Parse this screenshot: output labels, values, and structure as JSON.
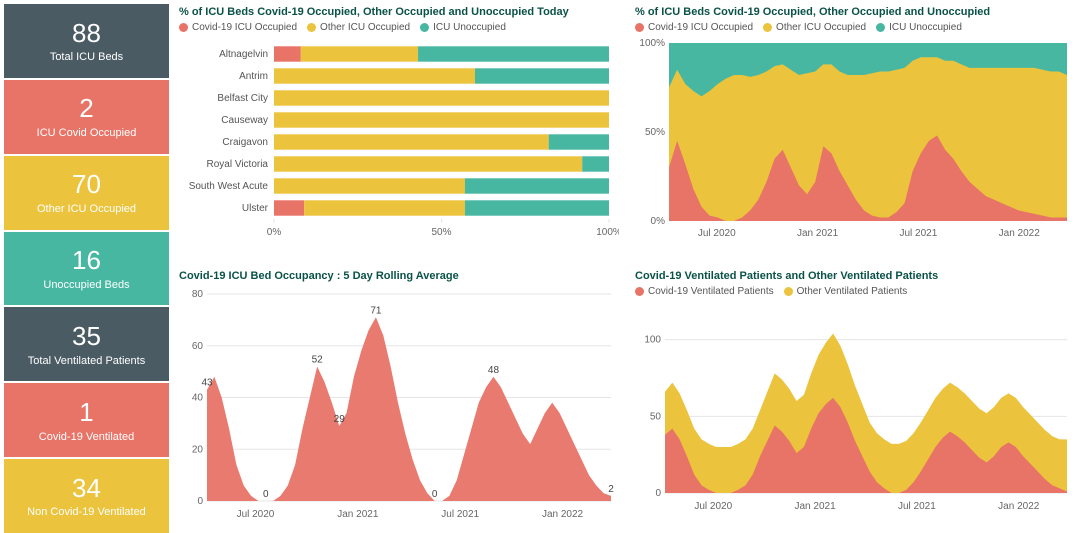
{
  "colors": {
    "slate": "#4a5b63",
    "red": "#e87367",
    "yellow": "#ebc33c",
    "teal": "#48b7a2",
    "title": "#0a5248",
    "grid": "#e5e5e5",
    "axis_text": "#666666"
  },
  "stats": [
    {
      "value": "88",
      "label": "Total ICU Beds",
      "bg": "#4a5b63"
    },
    {
      "value": "2",
      "label": "ICU Covid Occupied",
      "bg": "#e87367"
    },
    {
      "value": "70",
      "label": "Other ICU Occupied",
      "bg": "#ebc33c"
    },
    {
      "value": "16",
      "label": "Unoccupied Beds",
      "bg": "#48b7a2"
    },
    {
      "value": "35",
      "label": "Total Ventilated Patients",
      "bg": "#4a5b63"
    },
    {
      "value": "1",
      "label": "Covid-19 Ventilated",
      "bg": "#e87367"
    },
    {
      "value": "34",
      "label": "Non Covid-19 Ventilated",
      "bg": "#ebc33c"
    }
  ],
  "hbar": {
    "title": "% of ICU Beds Covid-19 Occupied, Other Occupied and Unoccupied Today",
    "legend": [
      {
        "label": "Covid-19 ICU Occupied",
        "color": "#e87367"
      },
      {
        "label": "Other ICU Occupied",
        "color": "#ebc33c"
      },
      {
        "label": "ICU Unoccupied",
        "color": "#48b7a2"
      }
    ],
    "xticks": [
      "0%",
      "50%",
      "100%"
    ],
    "rows": [
      {
        "name": "Altnagelvin",
        "segs": [
          8,
          35,
          57
        ]
      },
      {
        "name": "Antrim",
        "segs": [
          0,
          60,
          40
        ]
      },
      {
        "name": "Belfast City",
        "segs": [
          0,
          100,
          0
        ]
      },
      {
        "name": "Causeway",
        "segs": [
          0,
          100,
          0
        ]
      },
      {
        "name": "Craigavon",
        "segs": [
          0,
          82,
          18
        ]
      },
      {
        "name": "Royal Victoria",
        "segs": [
          0,
          92,
          8
        ]
      },
      {
        "name": "South West Acute",
        "segs": [
          0,
          57,
          43
        ]
      },
      {
        "name": "Ulster",
        "segs": [
          9,
          48,
          43
        ]
      }
    ]
  },
  "stacked_pct": {
    "title": "% of ICU Beds Covid-19 Occupied, Other Occupied and Unoccupied",
    "legend": [
      {
        "label": "Covid-19 ICU Occupied",
        "color": "#e87367"
      },
      {
        "label": "Other ICU Occupied",
        "color": "#ebc33c"
      },
      {
        "label": "ICU Unoccupied",
        "color": "#48b7a2"
      }
    ],
    "yticks": [
      "0%",
      "50%",
      "100%"
    ],
    "xticks": [
      "Jul 2020",
      "Jan 2021",
      "Jul 2021",
      "Jan 2022"
    ],
    "series_covid": [
      30,
      45,
      32,
      18,
      8,
      3,
      2,
      0,
      0,
      2,
      6,
      12,
      22,
      35,
      40,
      30,
      20,
      15,
      22,
      42,
      38,
      28,
      20,
      12,
      6,
      3,
      2,
      2,
      5,
      10,
      28,
      38,
      45,
      48,
      40,
      35,
      28,
      22,
      18,
      14,
      12,
      10,
      8,
      6,
      5,
      4,
      3,
      2,
      2,
      2
    ],
    "series_other": [
      45,
      40,
      45,
      55,
      62,
      70,
      75,
      80,
      82,
      80,
      75,
      70,
      62,
      52,
      48,
      55,
      62,
      68,
      62,
      46,
      50,
      56,
      62,
      70,
      76,
      80,
      82,
      82,
      80,
      76,
      62,
      54,
      47,
      44,
      50,
      55,
      60,
      64,
      68,
      72,
      74,
      76,
      78,
      80,
      81,
      82,
      82,
      82,
      82,
      80
    ]
  },
  "rolling": {
    "title": "Covid-19 ICU Bed Occupancy : 5 Day Rolling Average",
    "ymax": 80,
    "yticks": [
      0,
      20,
      40,
      60,
      80
    ],
    "xticks": [
      "Jul 2020",
      "Jan 2021",
      "Jul 2021",
      "Jan 2022"
    ],
    "color": "#e87367",
    "values": [
      43,
      48,
      40,
      28,
      14,
      6,
      2,
      0,
      0,
      0,
      2,
      6,
      14,
      28,
      40,
      52,
      46,
      38,
      29,
      34,
      48,
      58,
      66,
      71,
      64,
      52,
      38,
      26,
      16,
      8,
      3,
      0,
      0,
      2,
      8,
      18,
      28,
      38,
      44,
      48,
      44,
      38,
      32,
      26,
      22,
      28,
      34,
      38,
      34,
      28,
      22,
      16,
      10,
      6,
      3,
      2
    ],
    "labels": [
      {
        "i": 0,
        "text": "43"
      },
      {
        "i": 8,
        "text": "0"
      },
      {
        "i": 15,
        "text": "52"
      },
      {
        "i": 18,
        "text": "29"
      },
      {
        "i": 23,
        "text": "71"
      },
      {
        "i": 31,
        "text": "0"
      },
      {
        "i": 39,
        "text": "48"
      },
      {
        "i": 55,
        "text": "2"
      }
    ]
  },
  "ventilated": {
    "title": "Covid-19 Ventilated Patients and Other Ventilated Patients",
    "legend": [
      {
        "label": "Covid-19 Ventilated Patients",
        "color": "#e87367"
      },
      {
        "label": "Other Ventilated Patients",
        "color": "#ebc33c"
      }
    ],
    "ymax": 120,
    "yticks": [
      0,
      50,
      100
    ],
    "xticks": [
      "Jul 2020",
      "Jan 2021",
      "Jul 2021",
      "Jan 2022"
    ],
    "covid": [
      38,
      42,
      35,
      24,
      12,
      5,
      2,
      0,
      0,
      0,
      2,
      5,
      12,
      24,
      34,
      44,
      40,
      34,
      26,
      30,
      42,
      52,
      58,
      62,
      56,
      46,
      34,
      24,
      14,
      7,
      3,
      0,
      0,
      2,
      7,
      14,
      22,
      30,
      36,
      40,
      37,
      33,
      28,
      23,
      20,
      24,
      30,
      33,
      30,
      24,
      19,
      14,
      9,
      5,
      3,
      1
    ],
    "other": [
      28,
      30,
      30,
      30,
      30,
      30,
      30,
      30,
      30,
      30,
      30,
      30,
      30,
      30,
      32,
      34,
      34,
      34,
      34,
      34,
      36,
      38,
      40,
      42,
      40,
      38,
      36,
      34,
      32,
      32,
      32,
      32,
      32,
      32,
      32,
      32,
      32,
      32,
      32,
      32,
      32,
      32,
      32,
      32,
      32,
      32,
      32,
      32,
      32,
      32,
      32,
      32,
      32,
      32,
      32,
      34
    ]
  }
}
